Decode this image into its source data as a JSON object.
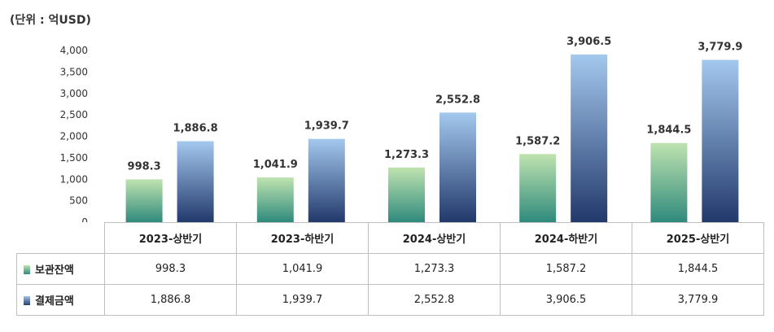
{
  "unit_label": "(단위 : 억USD)",
  "chart_data": {
    "type": "bar",
    "categories": [
      "2023-상반기",
      "2023-하반기",
      "2024-상반기",
      "2024-하반기",
      "2025-상반기"
    ],
    "series": [
      {
        "name": "보관잔액",
        "values": [
          998.3,
          1041.9,
          1273.3,
          1587.2,
          1844.5
        ],
        "labels": [
          "998.3",
          "1,041.9",
          "1,273.3",
          "1,587.2",
          "1,844.5"
        ],
        "colors": [
          "#bfe3b0",
          "#2f8a7c"
        ]
      },
      {
        "name": "결제금액",
        "values": [
          1886.8,
          1939.7,
          2552.8,
          3906.5,
          3779.9
        ],
        "labels": [
          "1,886.8",
          "1,939.7",
          "2,552.8",
          "3,906.5",
          "3,779.9"
        ],
        "colors": [
          "#a4c8ee",
          "#22396b"
        ]
      }
    ],
    "yticks": [
      "0",
      "500",
      "1,000",
      "1,500",
      "2,000",
      "2,500",
      "3,000",
      "3,500",
      "4,000"
    ],
    "ylim": [
      0,
      4000
    ],
    "xlabel": "",
    "ylabel": "",
    "legend": "data-table"
  }
}
